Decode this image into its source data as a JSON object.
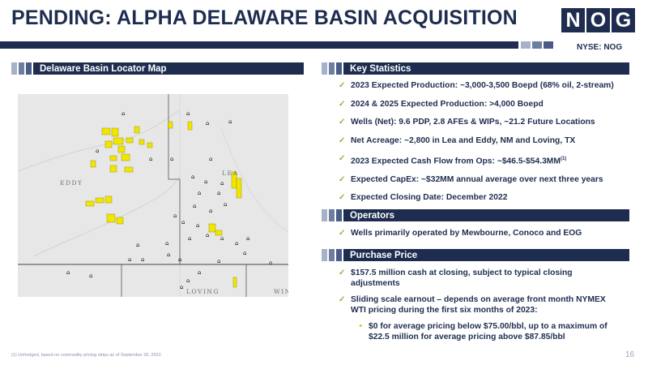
{
  "title": "PENDING: ALPHA DELAWARE BASIN ACQUISITION",
  "logo": [
    "N",
    "O",
    "G"
  ],
  "ticker": "NYSE: NOG",
  "map_section": {
    "header": "Delaware Basin Locator Map",
    "labels": [
      "EDDY",
      "LEA",
      "LOVING",
      "WIN"
    ]
  },
  "key_stats": {
    "header": "Key Statistics",
    "items": [
      "2023 Expected Production: ~3,000-3,500 Boepd (68% oil, 2-stream)",
      "2024 & 2025 Expected Production: >4,000 Boepd",
      "Wells (Net): 9.6 PDP, 2.8 AFEs & WIPs, ~21.2 Future Locations",
      "Net Acreage: ~2,800 in Lea and Eddy, NM and Loving, TX",
      "Expected CapEx: ~$32MM annual average over next three years",
      "Expected Closing Date: December 2022"
    ],
    "cashflow": "2023 Expected Cash Flow from Ops: ~$46.5-$54.3MM",
    "cashflow_sup": "(1)"
  },
  "operators": {
    "header": "Operators",
    "items": [
      "Wells primarily operated by Mewbourne, Conoco and EOG"
    ]
  },
  "purchase_price": {
    "header": "Purchase Price",
    "item1": "$157.5 million cash at closing, subject to typical closing adjustments",
    "item2": "Sliding scale earnout – depends on average front month NYMEX WTI pricing during the first six months of 2023:",
    "sub1": "$0 for average pricing below $75.00/bbl, up to a maximum of $22.5 million for average pricing above $87.85/bbl"
  },
  "footnote": "(1) Unhedged, based on commodity pricing strips as of September 28, 2022.",
  "page_number": "16",
  "colors": {
    "navy": "#1e2d4f",
    "check_green": "#8cb33e",
    "acreage_yellow": "#f2e600",
    "sq1": "#a7b2c9",
    "sq2": "#6d7ea3",
    "sq3": "#4a5c86"
  }
}
